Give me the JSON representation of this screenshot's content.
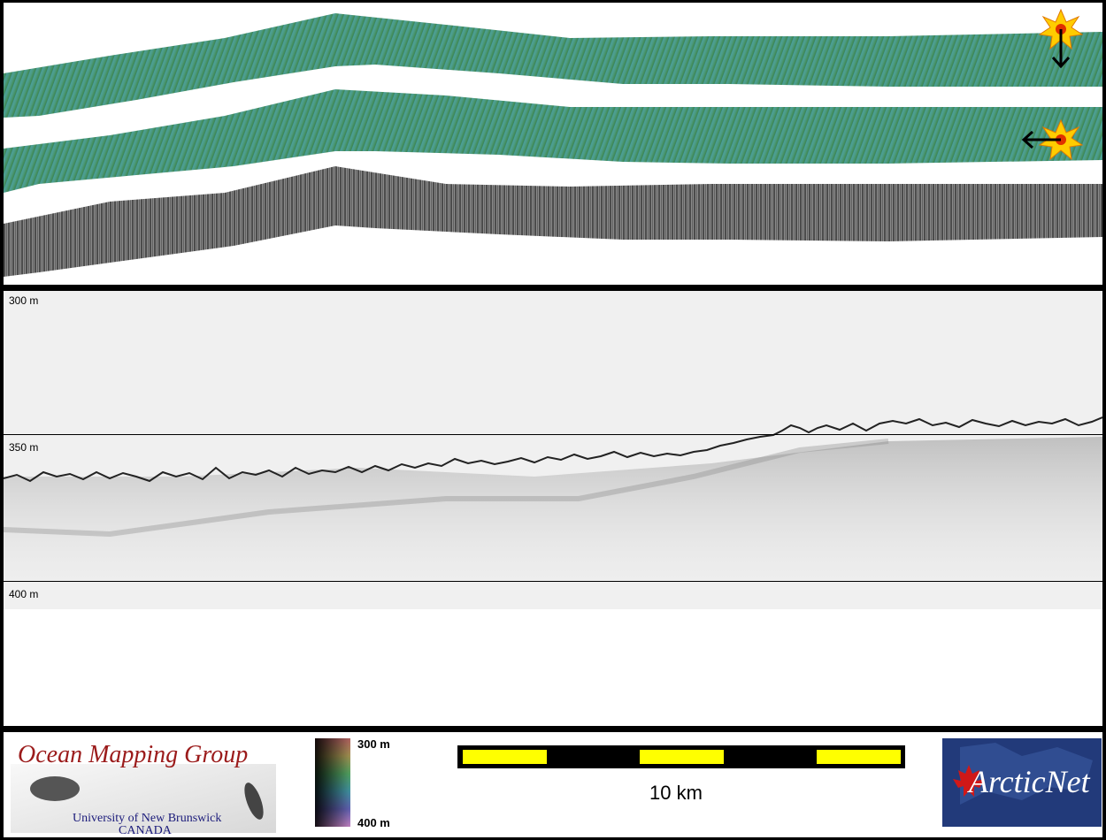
{
  "profile": {
    "depth_labels": [
      "300 m",
      "350 m",
      "400 m"
    ]
  },
  "footer": {
    "omg_logo": {
      "title": "Ocean Mapping Group",
      "line1": "University of New Brunswick",
      "line2": "CANADA"
    },
    "colorbar": {
      "top_label": "300 m",
      "bottom_label": "400 m"
    },
    "scale": {
      "label": "10 km",
      "segments": 5,
      "fill_colors": [
        "#ffff00",
        "#000000"
      ]
    },
    "arcticnet_logo": {
      "text": "ArcticNet"
    }
  },
  "colors": {
    "swath_teal": "#4a9e94",
    "swath_green": "#3e8a52",
    "backscatter_gray": "#777777",
    "sun_icon": "#ffcc00"
  }
}
